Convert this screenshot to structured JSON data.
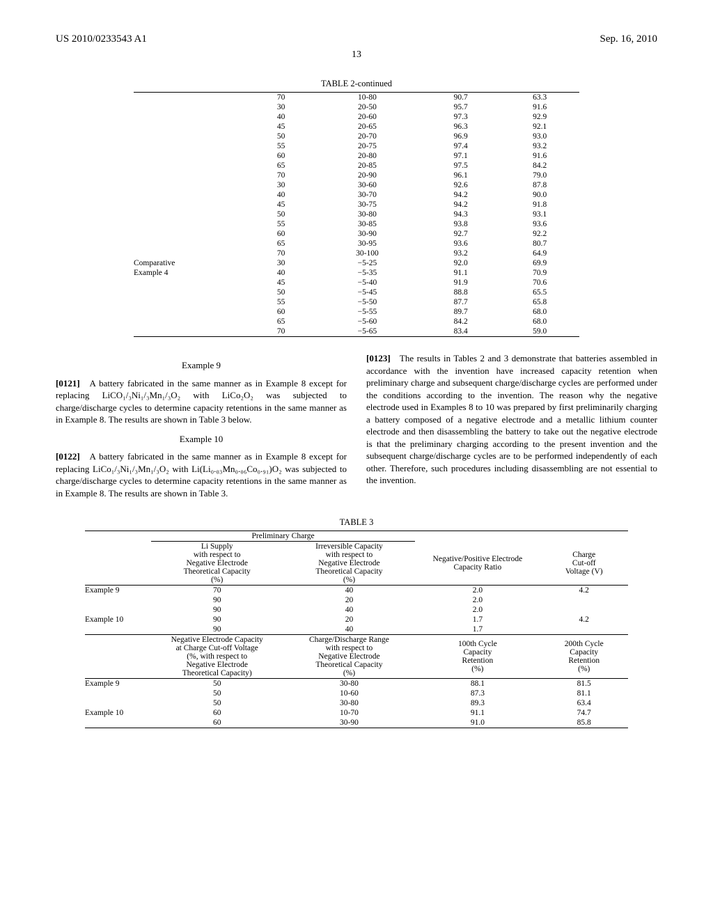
{
  "header": {
    "pubno": "US 2010/0233543 A1",
    "date": "Sep. 16, 2010",
    "pageno": "13"
  },
  "table2": {
    "title": "TABLE 2-continued",
    "rows_main": [
      [
        "",
        "70",
        "10-80",
        "90.7",
        "63.3"
      ],
      [
        "",
        "30",
        "20-50",
        "95.7",
        "91.6"
      ],
      [
        "",
        "40",
        "20-60",
        "97.3",
        "92.9"
      ],
      [
        "",
        "45",
        "20-65",
        "96.3",
        "92.1"
      ],
      [
        "",
        "50",
        "20-70",
        "96.9",
        "93.0"
      ],
      [
        "",
        "55",
        "20-75",
        "97.4",
        "93.2"
      ],
      [
        "",
        "60",
        "20-80",
        "97.1",
        "91.6"
      ],
      [
        "",
        "65",
        "20-85",
        "97.5",
        "84.2"
      ],
      [
        "",
        "70",
        "20-90",
        "96.1",
        "79.0"
      ],
      [
        "",
        "30",
        "30-60",
        "92.6",
        "87.8"
      ],
      [
        "",
        "40",
        "30-70",
        "94.2",
        "90.0"
      ],
      [
        "",
        "45",
        "30-75",
        "94.2",
        "91.8"
      ],
      [
        "",
        "50",
        "30-80",
        "94.3",
        "93.1"
      ],
      [
        "",
        "55",
        "30-85",
        "93.8",
        "93.6"
      ],
      [
        "",
        "60",
        "30-90",
        "92.7",
        "92.2"
      ],
      [
        "",
        "65",
        "30-95",
        "93.6",
        "80.7"
      ],
      [
        "",
        "70",
        "30-100",
        "93.2",
        "64.9"
      ]
    ],
    "rows_comp": [
      [
        "Comparative",
        "30",
        "−5-25",
        "92.0",
        "69.9"
      ],
      [
        "Example 4",
        "40",
        "−5-35",
        "91.1",
        "70.9"
      ],
      [
        "",
        "45",
        "−5-40",
        "91.9",
        "70.6"
      ],
      [
        "",
        "50",
        "−5-45",
        "88.8",
        "65.5"
      ],
      [
        "",
        "55",
        "−5-50",
        "87.7",
        "65.8"
      ],
      [
        "",
        "60",
        "−5-55",
        "89.7",
        "68.0"
      ],
      [
        "",
        "65",
        "−5-60",
        "84.2",
        "68.0"
      ],
      [
        "",
        "70",
        "−5-65",
        "83.4",
        "59.0"
      ]
    ]
  },
  "col_left": {
    "ex9_title": "Example 9",
    "ex9": "A battery fabricated in the same manner as in Example 8 except for replacing LiCO₁/₃Ni₁/₃Mn₁/₃O₂ with LiCo₂O₂ was subjected to charge/discharge cycles to determine capacity retentions in the same manner as in Example 8. The results are shown in Table 3 below.",
    "ex9_num": "[0121]",
    "ex10_title": "Example 10",
    "ex10": "A battery fabricated in the same manner as in Example 8 except for replacing LiCo₁/₃Ni₁/₃Mn₁/₃O₂ with Li(Li₀.₀₃Mn₀.₀₆Co₀.₉₁)O₂ was subjected to charge/discharge cycles to determine capacity retentions in the same manner as in Example 8. The results are shown in Table 3.",
    "ex10_num": "[0122]"
  },
  "col_right": {
    "p_num": "[0123]",
    "p": "The results in Tables 2 and 3 demonstrate that batteries assembled in accordance with the invention have increased capacity retention when preliminary charge and subsequent charge/discharge cycles are performed under the conditions according to the invention. The reason why the negative electrode used in Examples 8 to 10 was prepared by first preliminarily charging a battery composed of a negative electrode and a metallic lithium counter electrode and then disassembling the battery to take out the negative electrode is that the preliminary charging according to the present invention and the subsequent charge/discharge cycles are to be performed independently of each other. Therefore, such procedures including disassembling are not essential to the invention."
  },
  "table3": {
    "title": "TABLE 3",
    "head_a": {
      "group": "Preliminary Charge",
      "c1": [
        "Li Supply",
        "with respect to",
        "Negative Electrode",
        "Theoretical Capacity",
        "(%)"
      ],
      "c2": [
        "Irreversible Capacity",
        "with respect to",
        "Negative Electrode",
        "Theoretical Capacity",
        "(%)"
      ],
      "c3": [
        "Negative/Positive Electrode",
        "Capacity Ratio"
      ],
      "c4": [
        "Charge",
        "Cut-off",
        "Voltage (V)"
      ]
    },
    "rows_a": [
      [
        "Example 9",
        "70",
        "40",
        "2.0",
        "4.2"
      ],
      [
        "",
        "90",
        "20",
        "2.0",
        ""
      ],
      [
        "",
        "90",
        "40",
        "2.0",
        ""
      ],
      [
        "Example 10",
        "90",
        "20",
        "1.7",
        "4.2"
      ],
      [
        "",
        "90",
        "40",
        "1.7",
        ""
      ]
    ],
    "head_b": {
      "c1": [
        "Negative Electrode Capacity",
        "at Charge Cut-off Voltage",
        "(%, with respect to",
        "Negative Electrode",
        "Theoretical Capacity)"
      ],
      "c2": [
        "Charge/Discharge Range",
        "with respect to",
        "Negative Electrode",
        "Theoretical Capacity",
        "(%)"
      ],
      "c3": [
        "100th Cycle",
        "Capacity",
        "Retention",
        "(%)"
      ],
      "c4": [
        "200th Cycle",
        "Capacity",
        "Retention",
        "(%)"
      ]
    },
    "rows_b": [
      [
        "Example 9",
        "50",
        "30-80",
        "88.1",
        "81.5"
      ],
      [
        "",
        "50",
        "10-60",
        "87.3",
        "81.1"
      ],
      [
        "",
        "50",
        "30-80",
        "89.3",
        "63.4"
      ],
      [
        "Example 10",
        "60",
        "10-70",
        "91.1",
        "74.7"
      ],
      [
        "",
        "60",
        "30-90",
        "91.0",
        "85.8"
      ]
    ]
  }
}
